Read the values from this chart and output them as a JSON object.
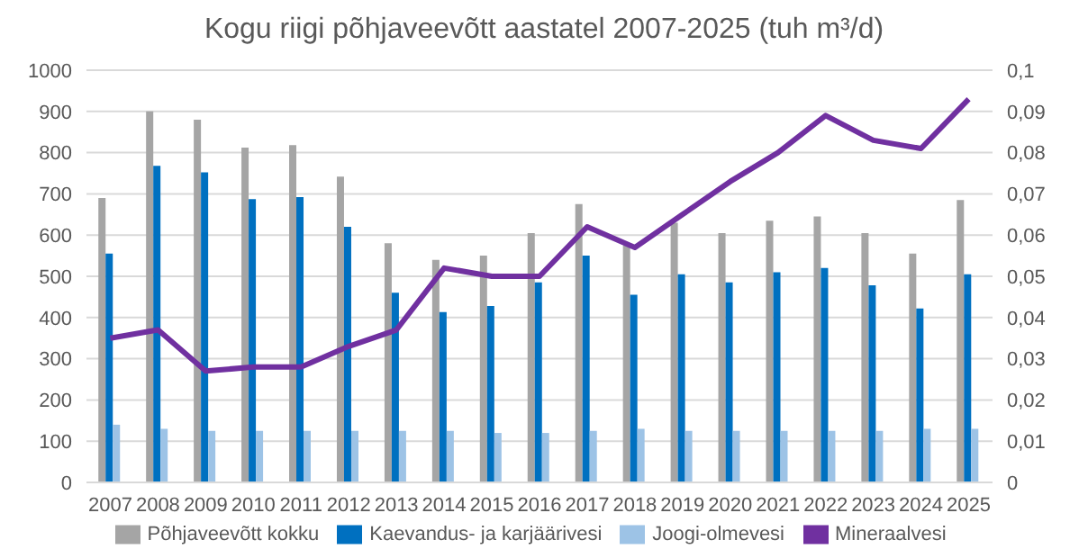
{
  "chart_data": {
    "type": "bar",
    "title": "Kogu riigi põhjaveevõtt aastatel 2007-2025 (tuh m³/d)",
    "categories": [
      "2007",
      "2008",
      "2009",
      "2010",
      "2011",
      "2012",
      "2013",
      "2014",
      "2015",
      "2016",
      "2017",
      "2018",
      "2019",
      "2020",
      "2021",
      "2022",
      "2023",
      "2024",
      "2025"
    ],
    "series": [
      {
        "name": "Põhjaveevõtt kokku",
        "color": "#a5a5a5",
        "values": [
          690,
          900,
          880,
          812,
          818,
          742,
          580,
          540,
          550,
          605,
          675,
          575,
          630,
          605,
          635,
          645,
          605,
          555,
          685
        ]
      },
      {
        "name": "Kaevandus- ja karjäärivesi",
        "color": "#0070c0",
        "values": [
          555,
          768,
          752,
          687,
          692,
          620,
          460,
          413,
          428,
          485,
          550,
          455,
          505,
          485,
          510,
          520,
          478,
          422,
          505
        ]
      },
      {
        "name": "Joogi-olmevesi",
        "color": "#9dc3e6",
        "values": [
          140,
          130,
          125,
          125,
          125,
          125,
          125,
          125,
          120,
          120,
          125,
          130,
          125,
          125,
          125,
          125,
          125,
          130,
          130
        ]
      },
      {
        "name": "Mineraalvesi",
        "color": "#7030a0",
        "type": "line",
        "axis": "y2",
        "values": [
          0.035,
          0.037,
          0.027,
          0.028,
          0.028,
          0.033,
          0.037,
          0.052,
          0.05,
          0.05,
          0.062,
          0.057,
          0.065,
          0.073,
          0.08,
          0.089,
          0.083,
          0.081,
          0.093
        ]
      }
    ],
    "ylim": [
      0,
      1000
    ],
    "yticks": [
      0,
      100,
      200,
      300,
      400,
      500,
      600,
      700,
      800,
      900,
      1000
    ],
    "y2lim": [
      0,
      0.1
    ],
    "y2ticks": [
      0,
      {
        "value": 0.01,
        "label": "0,01"
      },
      {
        "value": 0.02,
        "label": "0,02"
      },
      {
        "value": 0.03,
        "label": "0,03"
      },
      {
        "value": 0.04,
        "label": "0,04"
      },
      {
        "value": 0.05,
        "label": "0,05"
      },
      {
        "value": 0.06,
        "label": "0,06"
      },
      {
        "value": 0.07,
        "label": "0,07"
      },
      {
        "value": 0.08,
        "label": "0,08"
      },
      {
        "value": 0.09,
        "label": "0,09"
      },
      {
        "value": 0.1,
        "label": "0,1"
      }
    ],
    "grid": "y",
    "legend": "bottom",
    "marker": "none"
  }
}
